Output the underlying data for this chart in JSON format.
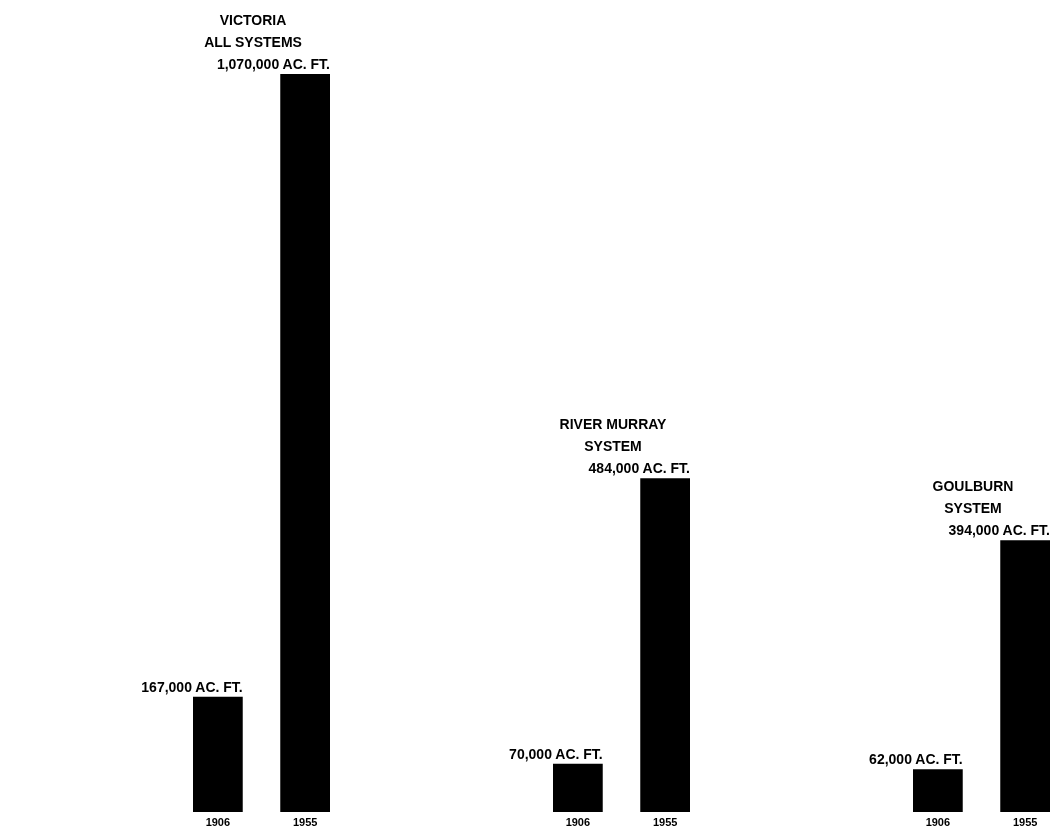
{
  "chart_data": [
    {
      "type": "bar",
      "title": "VICTORIA\nALL SYSTEMS",
      "categories": [
        "1906",
        "1955"
      ],
      "values": [
        167000,
        1070000
      ],
      "value_labels": [
        "167,000 AC. FT.",
        "1,070,000 AC. FT."
      ],
      "color": "#000000",
      "tick_labels": "x"
    },
    {
      "type": "bar",
      "title": "RIVER MURRAY\nSYSTEM",
      "categories": [
        "1906",
        "1955"
      ],
      "values": [
        70000,
        484000
      ],
      "value_labels": [
        "70,000 AC. FT.",
        "484,000 AC. FT."
      ],
      "color": "#000000",
      "tick_labels": "x"
    },
    {
      "type": "bar",
      "title": "GOULBURN\nSYSTEM",
      "categories": [
        "1906",
        "1955"
      ],
      "values": [
        62000,
        394000
      ],
      "value_labels": [
        "62,000 AC. FT.",
        "394,000 AC. FT."
      ],
      "color": "#000000",
      "tick_labels": "x"
    }
  ]
}
